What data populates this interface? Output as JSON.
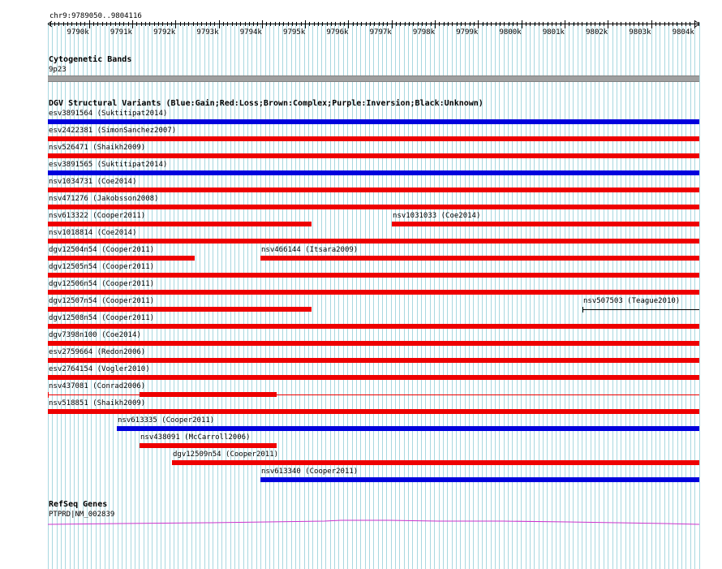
{
  "ruler": {
    "region_label": "chr9:9789050..9804116",
    "start": 9789050,
    "end": 9804116,
    "tick_labels": [
      {
        "pos": 9790000,
        "label": "9790k"
      },
      {
        "pos": 9791000,
        "label": "9791k"
      },
      {
        "pos": 9792000,
        "label": "9792k"
      },
      {
        "pos": 9793000,
        "label": "9793k"
      },
      {
        "pos": 9794000,
        "label": "9794k"
      },
      {
        "pos": 9795000,
        "label": "9795k"
      },
      {
        "pos": 9796000,
        "label": "9796k"
      },
      {
        "pos": 9797000,
        "label": "9797k"
      },
      {
        "pos": 9798000,
        "label": "9798k"
      },
      {
        "pos": 9799000,
        "label": "9799k"
      },
      {
        "pos": 9800000,
        "label": "9800k"
      },
      {
        "pos": 9801000,
        "label": "9801k"
      },
      {
        "pos": 9802000,
        "label": "9802k"
      },
      {
        "pos": 9803000,
        "label": "9803k"
      },
      {
        "pos": 9804000,
        "label": "9804k"
      }
    ]
  },
  "cytoband": {
    "title": "Cytogenetic Bands",
    "band_label": "9p23"
  },
  "dgv": {
    "title": "DGV Structural Variants (Blue:Gain;Red:Loss;Brown:Complex;Purple:Inversion;Black:Unknown)",
    "colors": {
      "gain": "#0000dd",
      "loss": "#ee0000",
      "unknown": "#000000"
    },
    "variants": [
      {
        "label": "esv3891564 (Suktitipat2014)",
        "start": 9789050,
        "end": 9804116,
        "type": "gain",
        "style": "thick",
        "row": 0
      },
      {
        "label": "esv2422381 (SimonSanchez2007)",
        "start": 9789050,
        "end": 9804116,
        "type": "loss",
        "style": "thick",
        "row": 1
      },
      {
        "label": "nsv526471 (Shaikh2009)",
        "start": 9789050,
        "end": 9804116,
        "type": "loss",
        "style": "thick",
        "row": 2
      },
      {
        "label": "esv3891565 (Suktitipat2014)",
        "start": 9789050,
        "end": 9804116,
        "type": "gain",
        "style": "thick",
        "row": 3
      },
      {
        "label": "nsv1034731 (Coe2014)",
        "start": 9789050,
        "end": 9804116,
        "type": "loss",
        "style": "thick",
        "row": 4
      },
      {
        "label": "nsv471276 (Jakobsson2008)",
        "start": 9789050,
        "end": 9804116,
        "type": "loss",
        "style": "thick",
        "row": 5
      },
      {
        "label": "nsv613322 (Cooper2011)",
        "start": 9789050,
        "end": 9795140,
        "type": "loss",
        "style": "thick",
        "row": 6
      },
      {
        "label": "nsv1031033 (Coe2014)",
        "start": 9797000,
        "end": 9804116,
        "type": "loss",
        "style": "thick",
        "row": 6
      },
      {
        "label": "nsv1018814 (Coe2014)",
        "start": 9789050,
        "end": 9804116,
        "type": "loss",
        "style": "thick",
        "row": 7
      },
      {
        "label": "dgv12504n54 (Cooper2011)",
        "start": 9789050,
        "end": 9792440,
        "type": "loss",
        "style": "thick",
        "row": 8
      },
      {
        "label": "nsv466144 (Itsara2009)",
        "start": 9793960,
        "end": 9804116,
        "type": "loss",
        "style": "thick",
        "row": 8
      },
      {
        "label": "dgv12505n54 (Cooper2011)",
        "start": 9789050,
        "end": 9804116,
        "type": "loss",
        "style": "thick",
        "row": 9
      },
      {
        "label": "dgv12506n54 (Cooper2011)",
        "start": 9789050,
        "end": 9804116,
        "type": "loss",
        "style": "thick",
        "row": 10
      },
      {
        "label": "dgv12507n54 (Cooper2011)",
        "start": 9789050,
        "end": 9795140,
        "type": "loss",
        "style": "thick",
        "row": 11
      },
      {
        "label": "nsv507503 (Teague2010)",
        "start": 9801420,
        "end": 9804116,
        "type": "unknown",
        "style": "thin",
        "row": 11
      },
      {
        "label": "dgv12508n54 (Cooper2011)",
        "start": 9789050,
        "end": 9804116,
        "type": "loss",
        "style": "thick",
        "row": 12
      },
      {
        "label": "dgv7398n100 (Coe2014)",
        "start": 9789050,
        "end": 9804116,
        "type": "loss",
        "style": "thick",
        "row": 13
      },
      {
        "label": "esv2759664 (Redon2006)",
        "start": 9789050,
        "end": 9804116,
        "type": "loss",
        "style": "thick",
        "row": 14
      },
      {
        "label": "esv2764154 (Vogler2010)",
        "start": 9789050,
        "end": 9804116,
        "type": "loss",
        "style": "thick",
        "row": 15
      },
      {
        "label": "nsv437081 (Conrad2006)",
        "start": 9789050,
        "end": 9804116,
        "type": "loss",
        "style": "thin",
        "row": 16
      },
      {
        "label": "nsv518851 (Shaikh2009)",
        "start": 9789050,
        "end": 9804116,
        "type": "loss",
        "style": "thick",
        "row": 17
      },
      {
        "label": "nsv613335 (Cooper2011)",
        "start": 9790640,
        "end": 9804116,
        "type": "gain",
        "style": "thick",
        "row": 18
      },
      {
        "label": "nsv438091 (McCarroll2006)",
        "start": 9791170,
        "end": 9794340,
        "type": "loss",
        "style": "thick",
        "row": 19
      },
      {
        "label": "dgv12509n54 (Cooper2011)",
        "start": 9791920,
        "end": 9804116,
        "type": "loss",
        "style": "thick",
        "row": 20
      },
      {
        "label": "nsv613340 (Cooper2011)",
        "start": 9793960,
        "end": 9804116,
        "type": "gain",
        "style": "thick",
        "row": 21
      }
    ]
  },
  "refseq": {
    "title": "RefSeq Genes",
    "gene_label": "PTPRD|NM_002839",
    "color": "#cc33cc"
  }
}
